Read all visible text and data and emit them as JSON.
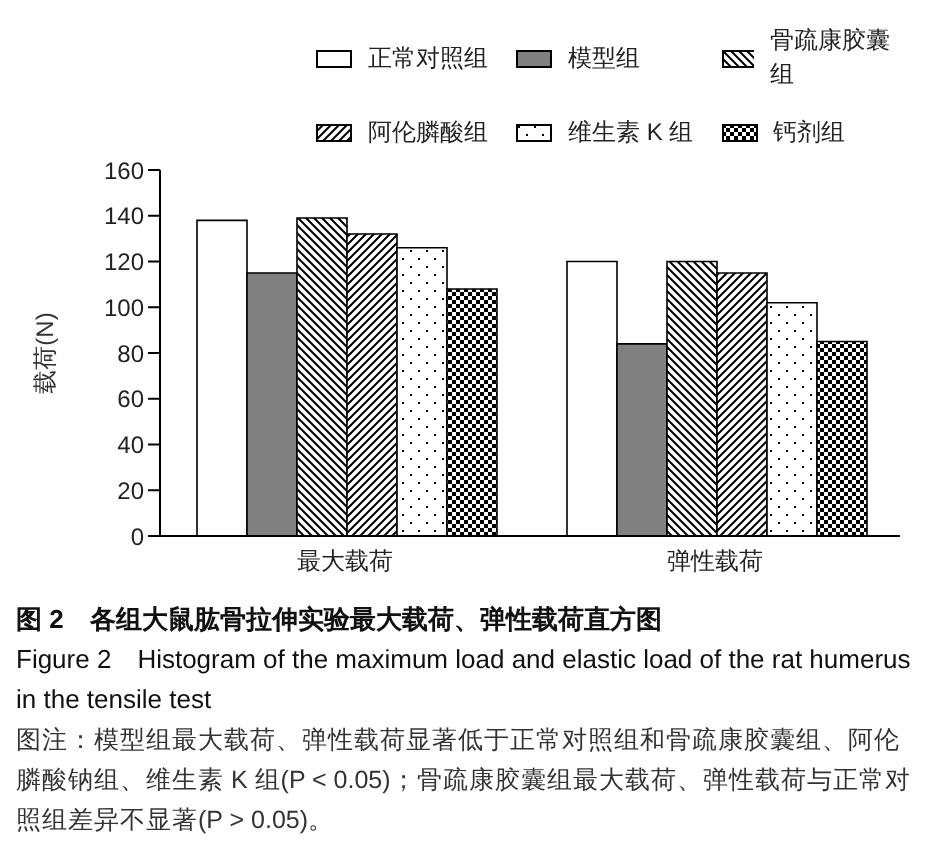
{
  "chart_data": {
    "type": "bar",
    "title": "图 2　各组大鼠肱骨拉伸实验最大载荷、弹性载荷直方图",
    "subtitle": "Figure 2　Histogram of the maximum load and elastic load of the rat humerus in the tensile test",
    "ylabel": "载荷(N)",
    "categories": [
      "最大载荷",
      "弹性载荷"
    ],
    "series": [
      {
        "name": "正常对照组",
        "color": "#ffffff",
        "values": [
          138,
          120
        ]
      },
      {
        "name": "模型组",
        "color": "#808080",
        "values": [
          115,
          84
        ]
      },
      {
        "name": "骨疏康胶囊组",
        "color": "#000000",
        "values": [
          139,
          120
        ]
      },
      {
        "name": "阿伦膦酸组",
        "color": "#000000",
        "values": [
          132,
          115
        ]
      },
      {
        "name": "维生素 K 组",
        "color": "#000000",
        "values": [
          126,
          102
        ]
      },
      {
        "name": "钙剂组",
        "color": "#000000",
        "values": [
          108,
          85
        ]
      }
    ],
    "ylim": [
      0,
      160
    ],
    "yticks": [
      0,
      20,
      40,
      60,
      80,
      100,
      120,
      140,
      160
    ],
    "grid": false,
    "legend": "top right",
    "annotations": [
      "图注：模型组最大载荷、弹性载荷显著低于正常对照组和骨疏康胶囊组、阿伦膦酸钠组、维生素 K 组(P < 0.05)；骨疏康胶囊组最大载荷、弹性载荷与正常对照组差异不显著(P > 0.05)。"
    ]
  }
}
